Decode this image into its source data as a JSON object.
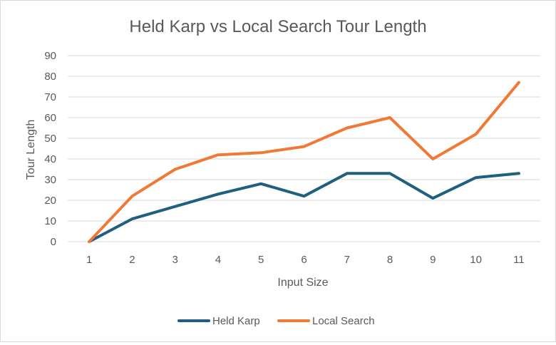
{
  "chart_data": {
    "type": "line",
    "title": "Held Karp vs Local Search Tour Length",
    "xlabel": "Input Size",
    "ylabel": "Tour Length",
    "categories": [
      "1",
      "2",
      "3",
      "4",
      "5",
      "6",
      "7",
      "8",
      "9",
      "10",
      "11"
    ],
    "ylim": [
      0,
      90
    ],
    "yticks": [
      0,
      10,
      20,
      30,
      40,
      50,
      60,
      70,
      80,
      90
    ],
    "grid": true,
    "legend_position": "bottom",
    "series": [
      {
        "name": "Held Karp",
        "color": "#1f5f7f",
        "values": [
          0,
          11,
          17,
          23,
          28,
          22,
          33,
          33,
          21,
          31,
          33
        ]
      },
      {
        "name": "Local Search",
        "color": "#f07a35",
        "values": [
          0,
          22,
          35,
          42,
          43,
          46,
          55,
          60,
          40,
          52,
          77
        ]
      }
    ]
  }
}
